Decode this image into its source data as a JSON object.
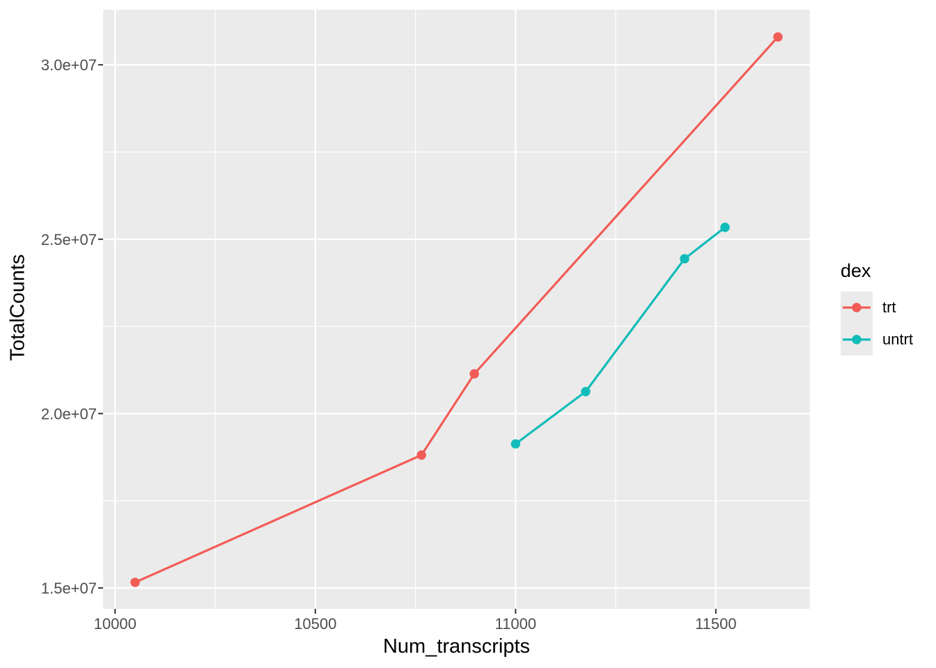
{
  "chart_data": {
    "type": "line",
    "title": "",
    "xlabel": "Num_transcripts",
    "ylabel": "TotalCounts",
    "xlim": [
      9970,
      11735
    ],
    "ylim": [
      14400000,
      31580000
    ],
    "grid": true,
    "x_ticks": {
      "values": [
        10000,
        10500,
        11000,
        11500
      ],
      "labels": [
        "10000",
        "10500",
        "11000",
        "11500"
      ]
    },
    "y_ticks": {
      "values": [
        15000000,
        20000000,
        25000000,
        30000000
      ],
      "labels": [
        "1.5e+07",
        "2.0e+07",
        "2.5e+07",
        "3.0e+07"
      ]
    },
    "x_minor": [
      10250,
      10750,
      11250
    ],
    "y_minor": [
      17500000,
      22500000,
      27500000
    ],
    "legend": {
      "title": "dex",
      "position": "right",
      "entries": [
        "trt",
        "untrt"
      ]
    },
    "series": [
      {
        "name": "trt",
        "color": "#F25C56",
        "x": [
          10050,
          10765,
          10897,
          11655
        ],
        "y": [
          15160000,
          18810000,
          21140000,
          30800000
        ]
      },
      {
        "name": "untrt",
        "color": "#12BCB8",
        "x": [
          11000,
          11175,
          11422,
          11523
        ],
        "y": [
          19130000,
          20630000,
          24440000,
          25340000
        ]
      }
    ],
    "style": {
      "panel_bg": "#EBEBEB",
      "grid_color": "#FFFFFF",
      "tick_color": "#333333",
      "tick_label_color": "#4D4D4D",
      "axis_title_color": "#000000",
      "point_radius": 6.7,
      "line_width": 3.2
    }
  }
}
